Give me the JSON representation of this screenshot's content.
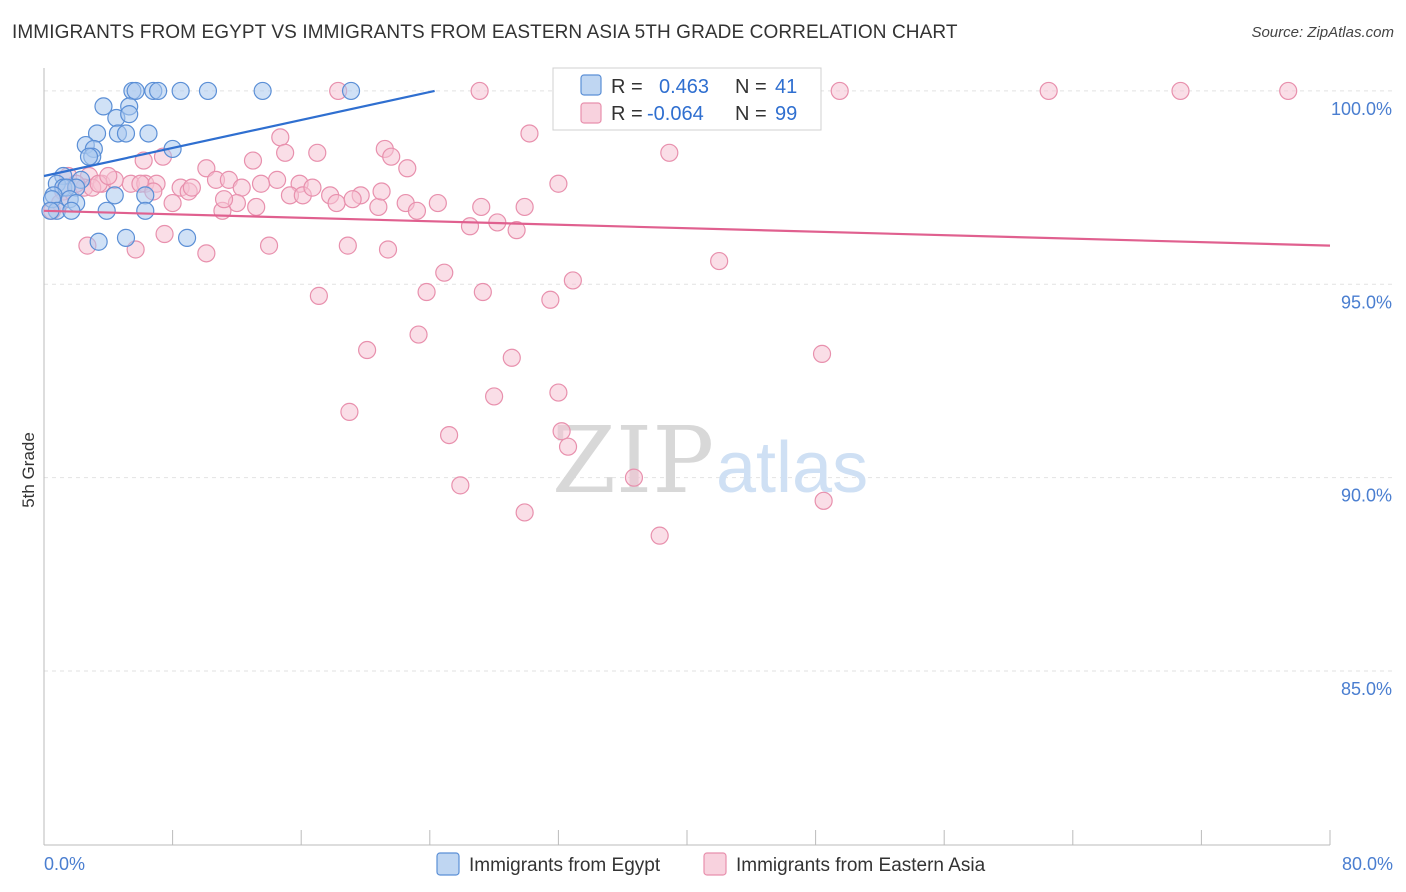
{
  "header": {
    "title": "IMMIGRANTS FROM EGYPT VS IMMIGRANTS FROM EASTERN ASIA 5TH GRADE CORRELATION CHART",
    "source": "Source: ZipAtlas.com"
  },
  "watermark": {
    "zip": "ZIP",
    "atlas": "atlas"
  },
  "colors": {
    "blue_fill": "#a9c8ee",
    "blue_stroke": "#5b8fd6",
    "blue_line": "#2f6fd0",
    "pink_fill": "#f6c3d3",
    "pink_stroke": "#e890ad",
    "pink_line": "#e0608f",
    "grid": "#e2e2e2",
    "axis": "#bbbbbb"
  },
  "legend": {
    "rows": [
      {
        "r_label": "R = ",
        "r_value": "0.463",
        "n_label": "N = ",
        "n_value": "41",
        "series": "egypt"
      },
      {
        "r_label": "R = ",
        "r_value": "-0.064",
        "n_label": "N = ",
        "n_value": "99",
        "series": "eastern_asia"
      }
    ]
  },
  "chart_data": {
    "type": "scatter",
    "title": "IMMIGRANTS FROM EGYPT VS IMMIGRANTS FROM EASTERN ASIA 5TH GRADE CORRELATION CHART",
    "xlabel": "",
    "ylabel": "5th Grade",
    "xlim": [
      0,
      80
    ],
    "ylim": [
      80.5,
      100.8
    ],
    "x_tick_labels": [
      "0.0%",
      "80.0%"
    ],
    "y_ticks": [
      85,
      90,
      95,
      100
    ],
    "y_tick_labels": [
      "85.0%",
      "90.0%",
      "95.0%",
      "100.0%"
    ],
    "legend_position": "bottom-center",
    "series": [
      {
        "name": "Immigrants from Egypt",
        "key": "egypt",
        "r": 0.463,
        "n": 41,
        "trend": {
          "x0": 0,
          "y0": 97.8,
          "x1": 24.3,
          "y1": 100.0
        },
        "points": [
          [
            5.5,
            100
          ],
          [
            5.7,
            100
          ],
          [
            6.8,
            100
          ],
          [
            7.1,
            100
          ],
          [
            8.5,
            100
          ],
          [
            10.2,
            100
          ],
          [
            13.6,
            100
          ],
          [
            19.1,
            100
          ],
          [
            3.7,
            99.6
          ],
          [
            5.3,
            99.6
          ],
          [
            4.5,
            99.3
          ],
          [
            5.3,
            99.4
          ],
          [
            4.6,
            98.9
          ],
          [
            6.5,
            98.9
          ],
          [
            5.1,
            98.9
          ],
          [
            3.3,
            98.9
          ],
          [
            2.6,
            98.6
          ],
          [
            3.1,
            98.5
          ],
          [
            8.0,
            98.5
          ],
          [
            3.0,
            98.3
          ],
          [
            2.8,
            98.3
          ],
          [
            1.2,
            97.8
          ],
          [
            2.3,
            97.7
          ],
          [
            0.8,
            97.6
          ],
          [
            1.2,
            97.5
          ],
          [
            2.0,
            97.5
          ],
          [
            1.4,
            97.5
          ],
          [
            0.6,
            97.3
          ],
          [
            4.4,
            97.3
          ],
          [
            6.3,
            97.3
          ],
          [
            0.5,
            97.2
          ],
          [
            1.6,
            97.2
          ],
          [
            2.0,
            97.1
          ],
          [
            0.8,
            96.9
          ],
          [
            1.7,
            96.9
          ],
          [
            3.9,
            96.9
          ],
          [
            6.3,
            96.9
          ],
          [
            0.4,
            96.9
          ],
          [
            3.4,
            96.1
          ],
          [
            5.1,
            96.2
          ],
          [
            8.9,
            96.2
          ]
        ]
      },
      {
        "name": "Immigrants from Eastern Asia",
        "key": "eastern_asia",
        "r": -0.064,
        "n": 99,
        "trend": {
          "x0": 0,
          "y0": 96.9,
          "x1": 80,
          "y1": 96.0
        },
        "points": [
          [
            18.3,
            100
          ],
          [
            27.1,
            100
          ],
          [
            37.1,
            100
          ],
          [
            40.1,
            100
          ],
          [
            42.9,
            100
          ],
          [
            49.5,
            100
          ],
          [
            62.5,
            100
          ],
          [
            70.7,
            100
          ],
          [
            77.4,
            100
          ],
          [
            1.5,
            97.8
          ],
          [
            2.8,
            97.8
          ],
          [
            3.6,
            97.6
          ],
          [
            5.4,
            97.6
          ],
          [
            6.3,
            97.6
          ],
          [
            6.0,
            97.6
          ],
          [
            2.5,
            97.5
          ],
          [
            1.2,
            97.4
          ],
          [
            7.0,
            97.6
          ],
          [
            8.5,
            97.5
          ],
          [
            9.0,
            97.4
          ],
          [
            6.8,
            97.4
          ],
          [
            10.1,
            98.0
          ],
          [
            10.7,
            97.7
          ],
          [
            11.5,
            97.7
          ],
          [
            13.0,
            98.2
          ],
          [
            14.7,
            98.8
          ],
          [
            15.0,
            98.4
          ],
          [
            14.5,
            97.7
          ],
          [
            12.3,
            97.5
          ],
          [
            15.9,
            97.6
          ],
          [
            17.0,
            98.4
          ],
          [
            12.0,
            97.1
          ],
          [
            13.2,
            97.0
          ],
          [
            15.3,
            97.3
          ],
          [
            17.8,
            97.3
          ],
          [
            18.2,
            97.1
          ],
          [
            20.8,
            97.0
          ],
          [
            19.7,
            97.3
          ],
          [
            21.2,
            98.5
          ],
          [
            21.6,
            98.3
          ],
          [
            21.0,
            97.4
          ],
          [
            22.5,
            97.1
          ],
          [
            24.5,
            97.1
          ],
          [
            27.2,
            97.0
          ],
          [
            28.2,
            96.6
          ],
          [
            29.4,
            96.4
          ],
          [
            29.9,
            97.0
          ],
          [
            32.0,
            97.6
          ],
          [
            30.2,
            98.9
          ],
          [
            38.9,
            98.4
          ],
          [
            2.7,
            96.0
          ],
          [
            5.7,
            95.9
          ],
          [
            7.5,
            96.3
          ],
          [
            10.1,
            95.8
          ],
          [
            14.0,
            96.0
          ],
          [
            18.9,
            96.0
          ],
          [
            21.4,
            95.9
          ],
          [
            23.2,
            96.9
          ],
          [
            24.9,
            95.3
          ],
          [
            23.8,
            94.8
          ],
          [
            27.3,
            94.8
          ],
          [
            31.5,
            94.6
          ],
          [
            32.9,
            95.1
          ],
          [
            42.0,
            95.6
          ],
          [
            17.1,
            94.7
          ],
          [
            20.1,
            93.3
          ],
          [
            23.3,
            93.7
          ],
          [
            29.1,
            93.1
          ],
          [
            48.4,
            93.2
          ],
          [
            32.0,
            92.2
          ],
          [
            28.0,
            92.1
          ],
          [
            19.0,
            91.7
          ],
          [
            25.2,
            91.1
          ],
          [
            32.2,
            91.2
          ],
          [
            32.6,
            90.8
          ],
          [
            36.7,
            90.0
          ],
          [
            25.9,
            89.8
          ],
          [
            29.9,
            89.1
          ],
          [
            38.3,
            88.5
          ],
          [
            48.5,
            89.4
          ],
          [
            0.5,
            96.9
          ],
          [
            1.0,
            97.1
          ],
          [
            3.0,
            97.5
          ],
          [
            4.4,
            97.7
          ],
          [
            8.0,
            97.1
          ],
          [
            9.2,
            97.5
          ],
          [
            11.1,
            96.9
          ],
          [
            16.1,
            97.3
          ],
          [
            19.2,
            97.2
          ],
          [
            11.2,
            97.2
          ],
          [
            3.4,
            97.6
          ],
          [
            6.2,
            98.2
          ],
          [
            7.4,
            98.3
          ],
          [
            4.0,
            97.8
          ],
          [
            2.0,
            97.6
          ],
          [
            13.5,
            97.6
          ],
          [
            22.6,
            98.0
          ],
          [
            16.7,
            97.5
          ],
          [
            26.5,
            96.5
          ]
        ]
      }
    ]
  },
  "bottom_legend": {
    "items": [
      {
        "label": "Immigrants from Egypt",
        "series": "egypt"
      },
      {
        "label": "Immigrants from Eastern Asia",
        "series": "eastern_asia"
      }
    ]
  }
}
